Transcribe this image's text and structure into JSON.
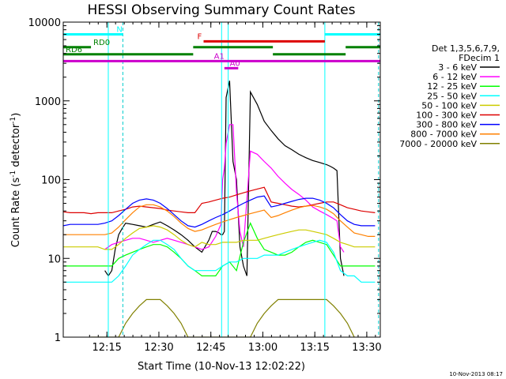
{
  "chart_data": {
    "type": "line",
    "title": "HESSI Observing Summary Count Rates",
    "xlabel": "Start Time (10-Nov-13 12:02:22)",
    "ylabel": "Count Rate (s",
    "ylabel_sup": "-1",
    "ylabel_tail": " detector",
    "ylabel_sup2": "-1",
    "ylabel_end": ")",
    "y_scale": "log",
    "ylim": [
      1,
      10000
    ],
    "xlim_minutes": [
      0,
      91.5
    ],
    "x_ticks": [
      {
        "t": 12.6,
        "label": "12:15"
      },
      {
        "t": 27.6,
        "label": "12:30"
      },
      {
        "t": 42.6,
        "label": "12:45"
      },
      {
        "t": 57.6,
        "label": "13:00"
      },
      {
        "t": 72.6,
        "label": "13:15"
      },
      {
        "t": 87.6,
        "label": "13:30"
      }
    ],
    "y_ticks": [
      {
        "v": 1,
        "label": "1"
      },
      {
        "v": 10,
        "label": "10"
      },
      {
        "v": 100,
        "label": "100"
      },
      {
        "v": 1000,
        "label": "1000"
      },
      {
        "v": 10000,
        "label": "10000"
      }
    ],
    "legend": {
      "header": [
        "Det 1,3,5,6,7,9,",
        "FDecim 1"
      ],
      "placement": "right"
    },
    "series": [
      {
        "name": "3 - 6 keV",
        "color": "#000000",
        "t": [
          12,
          13,
          14,
          15,
          16,
          17,
          18,
          20,
          22,
          24,
          26,
          28,
          30,
          32,
          34,
          36,
          38,
          40,
          42,
          43,
          44,
          45,
          45.5,
          46,
          46.5,
          47,
          48,
          49,
          50,
          51,
          52,
          53,
          54,
          56,
          58,
          60,
          62,
          64,
          66,
          68,
          70,
          72,
          74,
          76,
          77,
          78,
          79,
          80,
          81
        ],
        "v": [
          7,
          6,
          7,
          13,
          20,
          24,
          28,
          27,
          26,
          25,
          27,
          29,
          26,
          23,
          20,
          17,
          14,
          12,
          17,
          22,
          22,
          21,
          20,
          20,
          22,
          1100,
          1800,
          170,
          100,
          14,
          8,
          6,
          1300,
          900,
          550,
          420,
          330,
          270,
          240,
          210,
          190,
          175,
          165,
          155,
          148,
          140,
          130,
          10,
          6
        ]
      },
      {
        "name": "6 - 12 keV",
        "color": "#ff00ff",
        "t": [
          12,
          14,
          16,
          18,
          20,
          22,
          24,
          26,
          28,
          30,
          32,
          34,
          36,
          38,
          40,
          42,
          44,
          45.5,
          46,
          46.5,
          47,
          48,
          49,
          50,
          51,
          52,
          54,
          56,
          58,
          60,
          62,
          64,
          66,
          68,
          70,
          72,
          74,
          76,
          78,
          79,
          80,
          81
        ],
        "v": [
          13,
          15,
          16,
          17,
          18,
          18,
          17,
          16,
          17,
          18,
          17,
          16,
          15,
          14,
          13,
          14,
          19,
          27,
          100,
          140,
          290,
          500,
          500,
          70,
          22,
          14,
          230,
          210,
          170,
          140,
          110,
          90,
          75,
          65,
          55,
          45,
          40,
          36,
          32,
          30,
          14,
          12
        ]
      },
      {
        "name": "12 - 25 keV",
        "color": "#00ff00",
        "t": [
          0,
          2,
          4,
          6,
          8,
          10,
          12,
          14,
          16,
          18,
          20,
          22,
          24,
          26,
          28,
          30,
          32,
          34,
          36,
          38,
          40,
          42,
          44,
          46,
          48,
          50,
          52,
          54,
          56,
          58,
          60,
          62,
          64,
          66,
          68,
          70,
          72,
          74,
          76,
          78,
          80,
          82,
          84,
          86,
          88,
          90
        ],
        "v": [
          8,
          8,
          8,
          8,
          8,
          8,
          8,
          8,
          10,
          11,
          12,
          13,
          14,
          15,
          15,
          14,
          12,
          10,
          8,
          7,
          6,
          6,
          6,
          8,
          9,
          7,
          16,
          28,
          18,
          13,
          12,
          11,
          11,
          12,
          14,
          16,
          17,
          16,
          15,
          11,
          8,
          8,
          8,
          8,
          8,
          8
        ]
      },
      {
        "name": "25 - 50 keV",
        "color": "#00ffff",
        "t": [
          0,
          2,
          4,
          6,
          8,
          10,
          12,
          14,
          16,
          18,
          20,
          22,
          24,
          26,
          28,
          30,
          32,
          34,
          36,
          38,
          40,
          42,
          44,
          46,
          48,
          50,
          52,
          54,
          56,
          58,
          60,
          62,
          64,
          66,
          68,
          70,
          72,
          74,
          76,
          78,
          80,
          82,
          84,
          86,
          88,
          90
        ],
        "v": [
          5,
          5,
          5,
          5,
          5,
          5,
          5,
          5,
          6,
          8,
          11,
          13,
          15,
          17,
          17,
          15,
          13,
          10,
          8,
          7,
          7,
          7,
          7,
          8,
          9,
          9,
          10,
          10,
          10,
          11,
          11,
          11,
          12,
          13,
          14,
          15,
          16,
          17,
          16,
          12,
          7,
          6,
          6,
          5,
          5,
          5
        ]
      },
      {
        "name": "50 - 100 keV",
        "color": "#cccc00",
        "t": [
          0,
          2,
          4,
          6,
          8,
          10,
          12,
          14,
          16,
          18,
          20,
          22,
          24,
          26,
          28,
          30,
          32,
          34,
          36,
          38,
          40,
          42,
          44,
          46,
          48,
          50,
          52,
          54,
          56,
          58,
          60,
          62,
          64,
          66,
          68,
          70,
          72,
          74,
          76,
          78,
          80,
          82,
          84,
          86,
          88,
          90
        ],
        "v": [
          14,
          14,
          14,
          14,
          14,
          14,
          13,
          13,
          15,
          18,
          21,
          24,
          25,
          26,
          25,
          23,
          20,
          17,
          15,
          14,
          16,
          15,
          15,
          16,
          16,
          16,
          17,
          17,
          17,
          18,
          19,
          20,
          21,
          22,
          23,
          23,
          22,
          21,
          20,
          18,
          16,
          15,
          14,
          14,
          14,
          14
        ]
      },
      {
        "name": "100 - 300 keV",
        "color": "#dd0000",
        "t": [
          0,
          2,
          4,
          6,
          8,
          10,
          12,
          14,
          16,
          18,
          20,
          22,
          24,
          26,
          28,
          30,
          32,
          34,
          36,
          38,
          40,
          42,
          44,
          46,
          48,
          50,
          52,
          54,
          56,
          58,
          60,
          62,
          64,
          66,
          68,
          70,
          72,
          74,
          76,
          78,
          80,
          82,
          84,
          86,
          88,
          90
        ],
        "v": [
          39,
          38,
          38,
          38,
          37,
          38,
          38,
          38,
          40,
          42,
          45,
          46,
          45,
          44,
          43,
          41,
          40,
          39,
          38,
          38,
          50,
          52,
          55,
          58,
          60,
          64,
          68,
          72,
          76,
          80,
          52,
          50,
          48,
          46,
          45,
          46,
          48,
          50,
          52,
          52,
          48,
          44,
          42,
          40,
          39,
          38
        ]
      },
      {
        "name": "300 - 800 keV",
        "color": "#0000ff",
        "t": [
          0,
          2,
          4,
          6,
          8,
          10,
          12,
          14,
          16,
          18,
          20,
          22,
          24,
          26,
          28,
          30,
          32,
          34,
          36,
          38,
          40,
          42,
          44,
          46,
          48,
          50,
          52,
          54,
          56,
          58,
          60,
          62,
          64,
          66,
          68,
          70,
          72,
          74,
          76,
          78,
          80,
          82,
          84,
          86,
          88,
          90
        ],
        "v": [
          26,
          27,
          27,
          27,
          27,
          27,
          28,
          30,
          35,
          42,
          50,
          55,
          57,
          55,
          50,
          43,
          36,
          30,
          26,
          25,
          27,
          30,
          33,
          36,
          40,
          45,
          50,
          55,
          60,
          62,
          45,
          47,
          50,
          53,
          56,
          58,
          58,
          55,
          50,
          44,
          36,
          30,
          27,
          26,
          26,
          26
        ]
      },
      {
        "name": "800 - 7000 keV",
        "color": "#ff8000",
        "t": [
          0,
          2,
          4,
          6,
          8,
          10,
          12,
          14,
          16,
          18,
          20,
          22,
          24,
          26,
          28,
          30,
          32,
          34,
          36,
          38,
          40,
          42,
          44,
          46,
          48,
          50,
          52,
          54,
          56,
          58,
          60,
          62,
          64,
          66,
          68,
          70,
          72,
          74,
          76,
          78,
          80,
          82,
          84,
          86,
          88,
          90
        ],
        "v": [
          20,
          20,
          20,
          20,
          20,
          20,
          20,
          21,
          25,
          31,
          38,
          45,
          48,
          48,
          45,
          40,
          34,
          28,
          24,
          22,
          23,
          25,
          27,
          29,
          31,
          33,
          35,
          37,
          39,
          41,
          33,
          35,
          38,
          41,
          44,
          46,
          47,
          45,
          42,
          37,
          30,
          25,
          21,
          20,
          19,
          19
        ]
      },
      {
        "name": "7000 - 20000 keV",
        "color": "#808000",
        "t": [
          8,
          10,
          12,
          14,
          16,
          18,
          20,
          22,
          24,
          26,
          28,
          30,
          32,
          34,
          36,
          38,
          40,
          42,
          44,
          46,
          48,
          50,
          52,
          54,
          56,
          58,
          60,
          62,
          64,
          66,
          68,
          70,
          72,
          74,
          76,
          78,
          80,
          82,
          84
        ],
        "v": [
          1,
          1,
          1,
          1,
          1,
          1.5,
          2,
          2.5,
          3,
          3,
          3,
          2.5,
          2,
          1.5,
          1,
          1,
          1,
          1,
          1,
          1,
          1,
          1,
          1,
          1,
          1.5,
          2,
          2.5,
          3,
          3,
          3,
          3,
          3,
          3,
          3,
          3,
          2.5,
          2,
          1.5,
          1
        ]
      }
    ],
    "annotations": {
      "flags": [
        {
          "label": "N",
          "color": "#00ffff",
          "segments": [
            [
              0,
              17.2
            ],
            [
              75.5,
              91.5
            ]
          ],
          "v": 7000
        },
        {
          "label": "F",
          "color": "#dd0000",
          "segments": [
            [
              40.5,
              75.5
            ]
          ],
          "v": 5700
        },
        {
          "label": "RD0",
          "color": "#008000",
          "segments": [
            [
              0,
              8
            ],
            [
              37.5,
              60.5
            ],
            [
              81.5,
              91.5
            ]
          ],
          "v": 4800
        },
        {
          "label": "RD6",
          "color": "#008000",
          "segments": [
            [
              0,
              37.5
            ],
            [
              60.5,
              81.5
            ]
          ],
          "v": 3900
        },
        {
          "label": "A1",
          "color": "#cc00cc",
          "segments": [
            [
              0,
              91.5
            ]
          ],
          "v": 3200
        },
        {
          "label": "A0",
          "color": "#cc00cc",
          "segments": [
            [
              46.5,
              50.5
            ]
          ],
          "v": 2600
        }
      ],
      "vlines_solid": [
        13.0,
        45.7,
        47.6,
        75.5
      ],
      "vlines_dashed": [
        17.2,
        91.0
      ]
    }
  },
  "footer": {
    "timestamp": "10-Nov-2013 08:17"
  }
}
